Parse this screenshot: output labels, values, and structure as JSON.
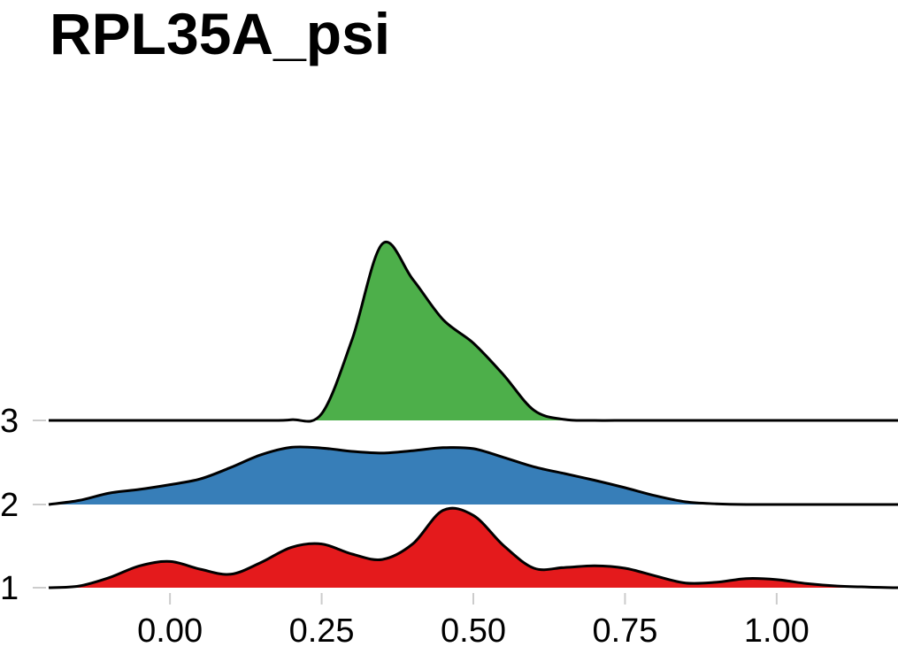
{
  "chart_data": {
    "type": "ridgeline",
    "title": "RPL35A_psi",
    "xlabel": "",
    "ylabel": "",
    "xlim": [
      -0.2,
      1.2
    ],
    "x_ticks": [
      "0.00",
      "0.25",
      "0.50",
      "0.75",
      "1.00"
    ],
    "x_tick_values": [
      0,
      0.25,
      0.5,
      0.75,
      1.0
    ],
    "categories": [
      "1",
      "2",
      "3"
    ],
    "grid": false,
    "legend": "none",
    "series": [
      {
        "category": "1",
        "color": "#E41A1C",
        "x": [
          -0.2,
          -0.15,
          -0.1,
          -0.05,
          0.0,
          0.05,
          0.1,
          0.15,
          0.2,
          0.25,
          0.3,
          0.35,
          0.4,
          0.45,
          0.5,
          0.55,
          0.6,
          0.65,
          0.7,
          0.75,
          0.8,
          0.85,
          0.9,
          0.95,
          1.0,
          1.05,
          1.1,
          1.15,
          1.2
        ],
        "density": [
          0.0,
          0.05,
          0.3,
          0.65,
          0.78,
          0.55,
          0.4,
          0.75,
          1.2,
          1.3,
          1.0,
          0.84,
          1.3,
          2.3,
          2.15,
          1.25,
          0.58,
          0.6,
          0.65,
          0.58,
          0.35,
          0.14,
          0.16,
          0.27,
          0.24,
          0.12,
          0.05,
          0.02,
          0.0
        ]
      },
      {
        "category": "2",
        "color": "#377EB8",
        "x": [
          -0.2,
          -0.15,
          -0.1,
          -0.05,
          0.0,
          0.05,
          0.1,
          0.15,
          0.2,
          0.25,
          0.3,
          0.35,
          0.4,
          0.45,
          0.5,
          0.55,
          0.6,
          0.65,
          0.7,
          0.75,
          0.8,
          0.85,
          0.9,
          0.95,
          1.0,
          1.05,
          1.1,
          1.15,
          1.2
        ],
        "density": [
          0.0,
          0.12,
          0.34,
          0.45,
          0.59,
          0.76,
          1.1,
          1.48,
          1.7,
          1.68,
          1.58,
          1.53,
          1.6,
          1.69,
          1.66,
          1.4,
          1.12,
          0.92,
          0.72,
          0.5,
          0.26,
          0.08,
          0.02,
          0.0,
          0.0,
          0.0,
          0.0,
          0.0,
          0.0
        ]
      },
      {
        "category": "3",
        "color": "#4DAF4A",
        "x": [
          -0.2,
          -0.15,
          -0.1,
          -0.05,
          0.0,
          0.05,
          0.1,
          0.15,
          0.2,
          0.25,
          0.3,
          0.35,
          0.4,
          0.45,
          0.5,
          0.55,
          0.6,
          0.65,
          0.7,
          0.75,
          0.8,
          0.85,
          0.9,
          0.95,
          1.0,
          1.05,
          1.1,
          1.15,
          1.2
        ],
        "density": [
          0.0,
          0.0,
          0.0,
          0.0,
          0.0,
          0.0,
          0.0,
          0.0,
          0.02,
          0.2,
          2.4,
          5.25,
          4.2,
          3.0,
          2.3,
          1.35,
          0.3,
          0.03,
          0.0,
          0.0,
          0.0,
          0.0,
          0.0,
          0.0,
          0.0,
          0.0,
          0.0,
          0.0,
          0.0
        ]
      }
    ]
  }
}
